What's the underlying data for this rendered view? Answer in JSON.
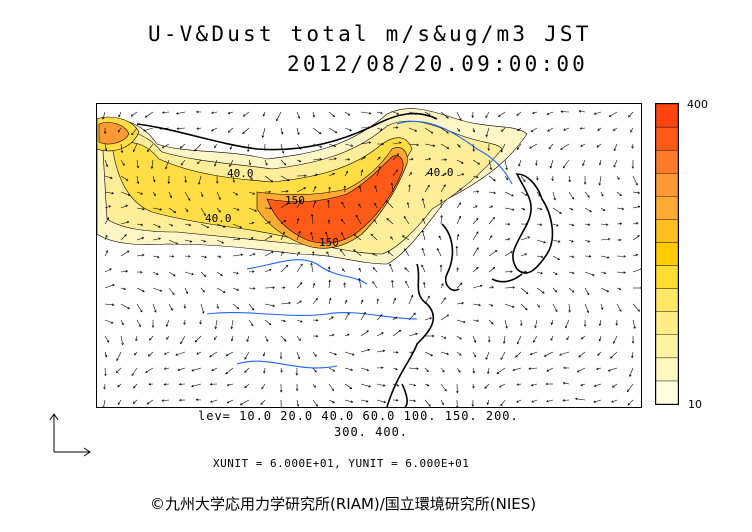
{
  "title": {
    "line1": "U-V&Dust total m/s&ug/m3 JST",
    "line2": "2012/08/20.09:00:00"
  },
  "colorbar": {
    "max_label": "400",
    "min_label": "10",
    "colors": [
      "#ffffe0",
      "#fff8c0",
      "#fff2a0",
      "#ffee88",
      "#ffe866",
      "#ffdd33",
      "#ffcc00",
      "#ffbf22",
      "#ffaa33",
      "#ff9933",
      "#ff7a2a",
      "#ff5a18",
      "#ff4410"
    ]
  },
  "contour_labels": {
    "l40a": "40.0",
    "l40b": "40.0",
    "l40c": "40.0",
    "l150a": "150",
    "l150b": "150"
  },
  "levels": {
    "line1": "lev= 10.0 20.0 40.0 60.0 100. 150. 200.",
    "line2": "300. 400."
  },
  "units": "XUNIT = 6.000E+01, YUNIT = 6.000E+01",
  "footer": "©九州大学応用力学研究所(RIAM)/国立環境研究所(NIES)",
  "colors": {
    "coast": "#000000",
    "river": "#1e64ff",
    "dust_high": "#ff4410",
    "dust_mid": "#ffcc00",
    "dust_low": "#fff4b0"
  }
}
